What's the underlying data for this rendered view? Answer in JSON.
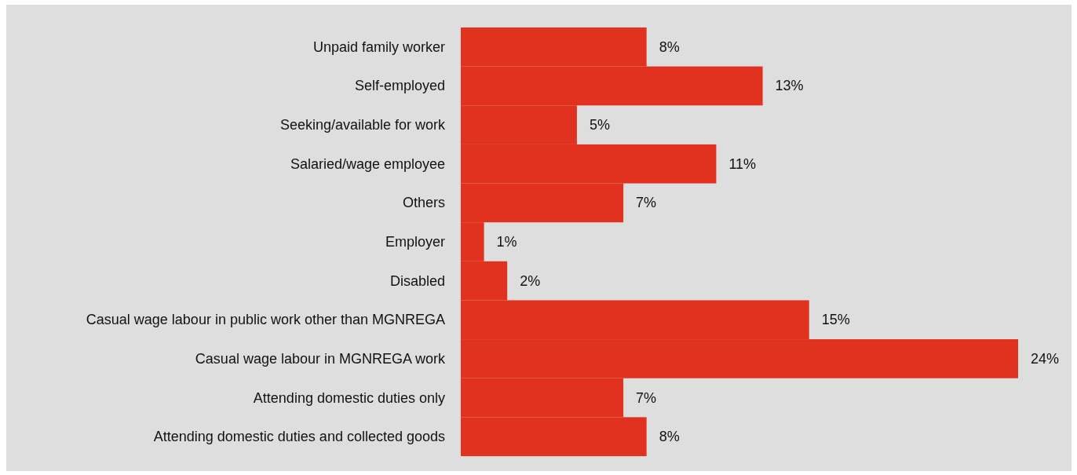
{
  "chart_data": {
    "type": "bar",
    "orientation": "horizontal",
    "categories": [
      "Unpaid family worker",
      "Self-employed",
      "Seeking/available for work",
      "Salaried/wage employee",
      "Others",
      "Employer",
      "Disabled",
      "Casual wage labour in public work other than MGNREGA",
      "Casual wage labour in MGNREGA work",
      "Attending domestic duties only",
      "Attending domestic duties and collected goods"
    ],
    "values": [
      8,
      13,
      5,
      11,
      7,
      1,
      2,
      15,
      24,
      7,
      8
    ],
    "value_labels": [
      "8%",
      "13%",
      "5%",
      "11%",
      "7%",
      "1%",
      "2%",
      "15%",
      "24%",
      "7%",
      "8%"
    ],
    "color": "#e0321e"
  }
}
